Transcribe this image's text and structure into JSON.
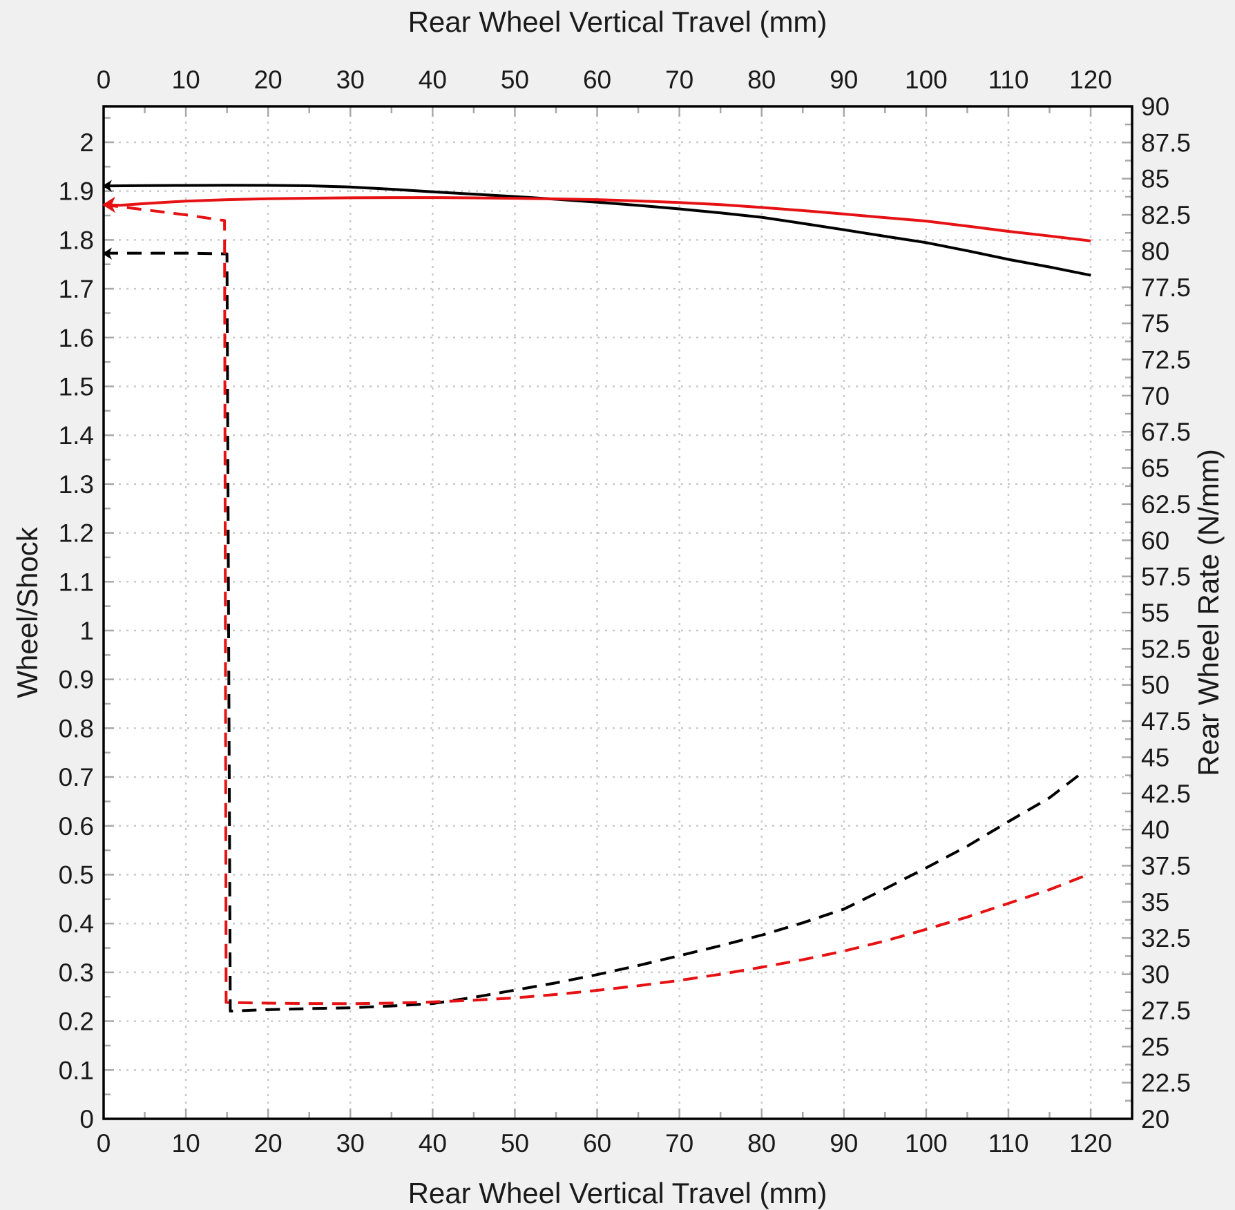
{
  "chart_data": {
    "type": "line",
    "title": "",
    "xlabel": "Rear Wheel Vertical Travel (mm)",
    "ylabel_left": "Wheel/Shock",
    "ylabel_right": "Rear Wheel Rate (N/mm)",
    "grid": "dotted, at x major ticks and left-axis major ticks",
    "legend_position": "none",
    "colors": {
      "series_black": "#000000",
      "series_red": "#e61113",
      "grid": "#c9c9c9",
      "ticks": "#a8a8a8",
      "plot_background": "#ffffff",
      "page_background": "#f0f0f0",
      "border": "#000000",
      "text": "#1a1a1a"
    },
    "x_axis": {
      "label": "Rear Wheel Vertical Travel (mm)",
      "shown_on": [
        "top",
        "bottom"
      ],
      "range": [
        0,
        124.95
      ],
      "major_step": 10,
      "minor_step": 5,
      "tick_labels": [
        "0",
        "10",
        "20",
        "30",
        "40",
        "50",
        "60",
        "70",
        "80",
        "90",
        "100",
        "110",
        "120"
      ]
    },
    "y_left": {
      "label": "Wheel/Shock",
      "range": [
        0,
        2.0735
      ],
      "major_step": 0.1,
      "minor_step": 0.05,
      "tick_labels": [
        "0",
        "0.1",
        "0.2",
        "0.3",
        "0.4",
        "0.5",
        "0.6",
        "0.7",
        "0.8",
        "0.9",
        "1",
        "1.1",
        "1.2",
        "1.3",
        "1.4",
        "1.5",
        "1.6",
        "1.7",
        "1.8",
        "1.9",
        "2"
      ]
    },
    "y_right": {
      "label": "Rear Wheel Rate (N/mm)",
      "range": [
        20,
        90
      ],
      "major_step": 2.5,
      "minor_step": 1.25,
      "tick_labels": [
        "20",
        "22.5",
        "25",
        "27.5",
        "30",
        "32.5",
        "35",
        "37.5",
        "40",
        "42.5",
        "45",
        "47.5",
        "50",
        "52.5",
        "55",
        "57.5",
        "60",
        "62.5",
        "65",
        "67.5",
        "70",
        "72.5",
        "75",
        "77.5",
        "80",
        "82.5",
        "85",
        "87.5",
        "90"
      ]
    },
    "series": [
      {
        "name": "leverage-ratio-black-solid",
        "axis": "left",
        "color": "#000000",
        "dashed": false,
        "points": [
          [
            0,
            1.9105
          ],
          [
            5,
            1.9112
          ],
          [
            10,
            1.9116
          ],
          [
            15,
            1.9119
          ],
          [
            20,
            1.9117
          ],
          [
            25,
            1.9108
          ],
          [
            30,
            1.9083
          ],
          [
            35,
            1.9038
          ],
          [
            40,
            1.8985
          ],
          [
            45,
            1.8938
          ],
          [
            50,
            1.8888
          ],
          [
            55,
            1.8833
          ],
          [
            60,
            1.8773
          ],
          [
            65,
            1.8707
          ],
          [
            70,
            1.8635
          ],
          [
            75,
            1.8553
          ],
          [
            80,
            1.8463
          ],
          [
            85,
            1.8338
          ],
          [
            90,
            1.8208
          ],
          [
            95,
            1.8075
          ],
          [
            100,
            1.7945
          ],
          [
            105,
            1.7778
          ],
          [
            110,
            1.76
          ],
          [
            115,
            1.7445
          ],
          [
            120,
            1.7275
          ]
        ]
      },
      {
        "name": "leverage-ratio-red-solid",
        "axis": "left",
        "color": "#e61113",
        "dashed": false,
        "points": [
          [
            0,
            1.872
          ],
          [
            2,
            1.8708
          ],
          [
            5,
            1.8744
          ],
          [
            10,
            1.8795
          ],
          [
            15,
            1.8824
          ],
          [
            20,
            1.8842
          ],
          [
            25,
            1.8854
          ],
          [
            30,
            1.8862
          ],
          [
            35,
            1.8866
          ],
          [
            40,
            1.8866
          ],
          [
            45,
            1.8861
          ],
          [
            50,
            1.8852
          ],
          [
            55,
            1.884
          ],
          [
            60,
            1.8824
          ],
          [
            65,
            1.8797
          ],
          [
            70,
            1.8765
          ],
          [
            75,
            1.8722
          ],
          [
            80,
            1.8665
          ],
          [
            85,
            1.86
          ],
          [
            90,
            1.853
          ],
          [
            95,
            1.8456
          ],
          [
            100,
            1.8385
          ],
          [
            105,
            1.8282
          ],
          [
            110,
            1.8175
          ],
          [
            115,
            1.808
          ],
          [
            120,
            1.798
          ]
        ]
      },
      {
        "name": "wheel-rate-black-dashed",
        "axis": "right",
        "color": "#000000",
        "dashed": true,
        "points": [
          [
            0,
            79.85
          ],
          [
            5,
            79.85
          ],
          [
            10,
            79.85
          ],
          [
            15,
            79.8
          ],
          [
            15.4,
            27.45
          ],
          [
            20,
            27.55
          ],
          [
            25,
            27.62
          ],
          [
            30,
            27.68
          ],
          [
            35,
            27.8
          ],
          [
            40,
            27.97
          ],
          [
            45,
            28.4
          ],
          [
            50,
            28.9
          ],
          [
            55,
            29.4
          ],
          [
            60,
            29.97
          ],
          [
            65,
            30.6
          ],
          [
            70,
            31.28
          ],
          [
            75,
            31.97
          ],
          [
            80,
            32.7
          ],
          [
            85,
            33.55
          ],
          [
            90,
            34.5
          ],
          [
            95,
            35.9
          ],
          [
            100,
            37.35
          ],
          [
            105,
            38.85
          ],
          [
            110,
            40.55
          ],
          [
            115,
            42.2
          ],
          [
            119,
            43.95
          ]
        ]
      },
      {
        "name": "wheel-rate-red-dashed",
        "axis": "right",
        "color": "#e61113",
        "dashed": true,
        "points": [
          [
            0,
            83.2
          ],
          [
            5,
            82.85
          ],
          [
            10,
            82.5
          ],
          [
            14.7,
            82.1
          ],
          [
            14.9,
            28.05
          ],
          [
            20,
            28.0
          ],
          [
            25,
            27.97
          ],
          [
            30,
            27.96
          ],
          [
            35,
            28.0
          ],
          [
            40,
            28.08
          ],
          [
            45,
            28.2
          ],
          [
            50,
            28.36
          ],
          [
            55,
            28.6
          ],
          [
            60,
            28.88
          ],
          [
            65,
            29.2
          ],
          [
            70,
            29.57
          ],
          [
            75,
            30.0
          ],
          [
            80,
            30.48
          ],
          [
            85,
            31.0
          ],
          [
            90,
            31.6
          ],
          [
            95,
            32.3
          ],
          [
            100,
            33.1
          ],
          [
            105,
            33.95
          ],
          [
            110,
            34.9
          ],
          [
            115,
            35.85
          ],
          [
            119.5,
            36.85
          ]
        ]
      }
    ],
    "start_markers": [
      {
        "axis": "left",
        "x": 0,
        "value": 1.9105,
        "color": "#000000",
        "size": 14
      },
      {
        "axis": "left",
        "x": 0,
        "value": 1.872,
        "color": "#e61113",
        "size": 19
      },
      {
        "axis": "left",
        "x": 0,
        "value": 1.772,
        "color": "#000000",
        "size": 14
      }
    ]
  }
}
